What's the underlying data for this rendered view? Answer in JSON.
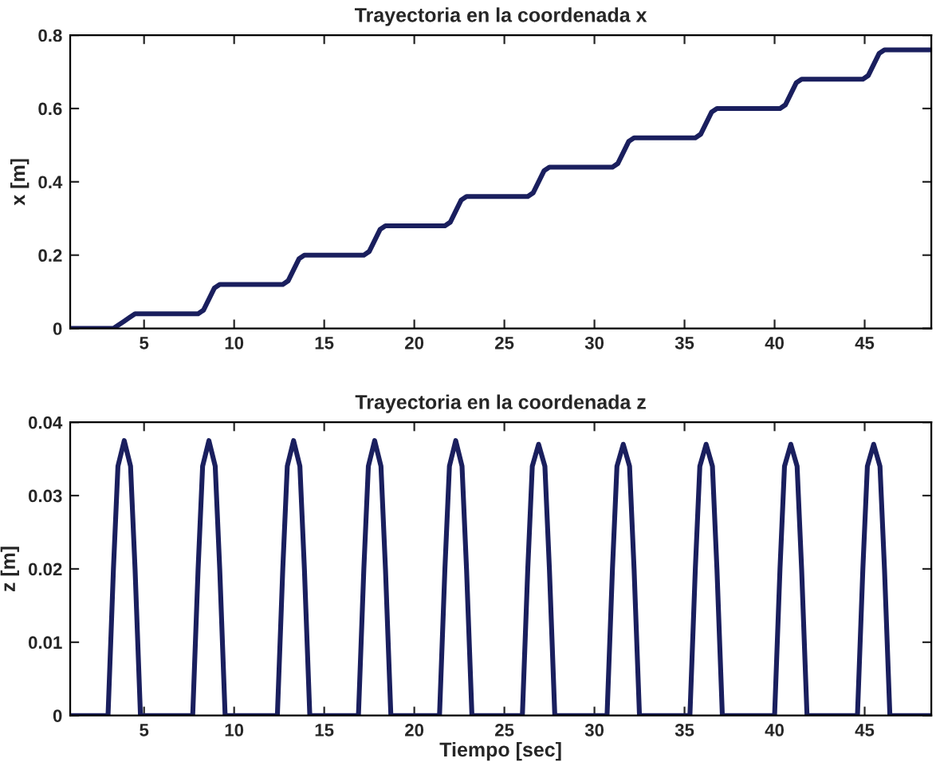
{
  "chart_data": [
    {
      "type": "line",
      "title": "Trayectoria en la coordenada x",
      "ylabel": "x [m]",
      "xlim": [
        0.9,
        48.7
      ],
      "ylim": [
        0,
        0.8
      ],
      "xticks": [
        5,
        10,
        15,
        20,
        25,
        30,
        35,
        40,
        45
      ],
      "yticks": [
        0,
        0.2,
        0.4,
        0.6,
        0.8
      ],
      "series": [
        {
          "color": "#1a1f5e",
          "x": [
            0.9,
            3.3,
            3.6,
            3.9,
            4.2,
            4.5,
            8.0,
            8.3,
            8.6,
            8.9,
            9.2,
            12.7,
            13.0,
            13.3,
            13.6,
            13.9,
            17.2,
            17.5,
            17.8,
            18.1,
            18.4,
            21.7,
            22.0,
            22.3,
            22.6,
            22.9,
            26.3,
            26.6,
            26.9,
            27.2,
            27.5,
            31.0,
            31.3,
            31.6,
            31.9,
            32.2,
            35.6,
            35.9,
            36.2,
            36.5,
            36.8,
            40.3,
            40.6,
            40.9,
            41.2,
            41.5,
            44.9,
            45.2,
            45.5,
            45.8,
            46.1,
            48.7
          ],
          "values": [
            0,
            0,
            0.01,
            0.02,
            0.03,
            0.04,
            0.04,
            0.05,
            0.08,
            0.11,
            0.12,
            0.12,
            0.13,
            0.16,
            0.19,
            0.2,
            0.2,
            0.21,
            0.24,
            0.27,
            0.28,
            0.28,
            0.29,
            0.32,
            0.35,
            0.36,
            0.36,
            0.37,
            0.4,
            0.43,
            0.44,
            0.44,
            0.45,
            0.48,
            0.51,
            0.52,
            0.52,
            0.53,
            0.56,
            0.59,
            0.6,
            0.6,
            0.61,
            0.64,
            0.67,
            0.68,
            0.68,
            0.69,
            0.72,
            0.75,
            0.76,
            0.76
          ]
        }
      ]
    },
    {
      "type": "line",
      "title": "Trayectoria en la coordenada z",
      "xlabel": "Tiempo [sec]",
      "ylabel": "z [m]",
      "xlim": [
        0.9,
        48.7
      ],
      "ylim": [
        0,
        0.04
      ],
      "xticks": [
        5,
        10,
        15,
        20,
        25,
        30,
        35,
        40,
        45
      ],
      "yticks": [
        0,
        0.01,
        0.02,
        0.03,
        0.04
      ],
      "series": [
        {
          "color": "#1a1f5e",
          "x": [
            0.9,
            3.0,
            3.3,
            3.55,
            3.9,
            4.25,
            4.5,
            4.8,
            7.7,
            8.0,
            8.25,
            8.6,
            8.95,
            9.2,
            9.5,
            12.4,
            12.7,
            12.95,
            13.3,
            13.65,
            13.9,
            14.2,
            16.9,
            17.2,
            17.45,
            17.8,
            18.15,
            18.4,
            18.7,
            21.4,
            21.7,
            21.95,
            22.3,
            22.65,
            22.9,
            23.2,
            26.0,
            26.3,
            26.55,
            26.9,
            27.25,
            27.5,
            27.8,
            30.7,
            31.0,
            31.25,
            31.6,
            31.95,
            32.2,
            32.5,
            35.3,
            35.6,
            35.85,
            36.2,
            36.55,
            36.8,
            37.1,
            40.0,
            40.3,
            40.55,
            40.9,
            41.25,
            41.5,
            41.8,
            44.6,
            44.9,
            45.15,
            45.5,
            45.85,
            46.1,
            46.4,
            48.7
          ],
          "values": [
            0,
            0,
            0.02,
            0.034,
            0.0375,
            0.034,
            0.02,
            0,
            0,
            0.02,
            0.034,
            0.0375,
            0.034,
            0.02,
            0,
            0,
            0.02,
            0.034,
            0.0375,
            0.034,
            0.02,
            0,
            0,
            0.02,
            0.034,
            0.0375,
            0.034,
            0.02,
            0,
            0,
            0.02,
            0.034,
            0.0375,
            0.034,
            0.02,
            0,
            0,
            0.02,
            0.034,
            0.037,
            0.034,
            0.02,
            0,
            0,
            0.02,
            0.034,
            0.037,
            0.034,
            0.02,
            0,
            0,
            0.02,
            0.034,
            0.037,
            0.034,
            0.02,
            0,
            0,
            0.02,
            0.034,
            0.037,
            0.034,
            0.02,
            0,
            0,
            0.02,
            0.034,
            0.037,
            0.034,
            0.02,
            0,
            0
          ]
        }
      ]
    }
  ]
}
